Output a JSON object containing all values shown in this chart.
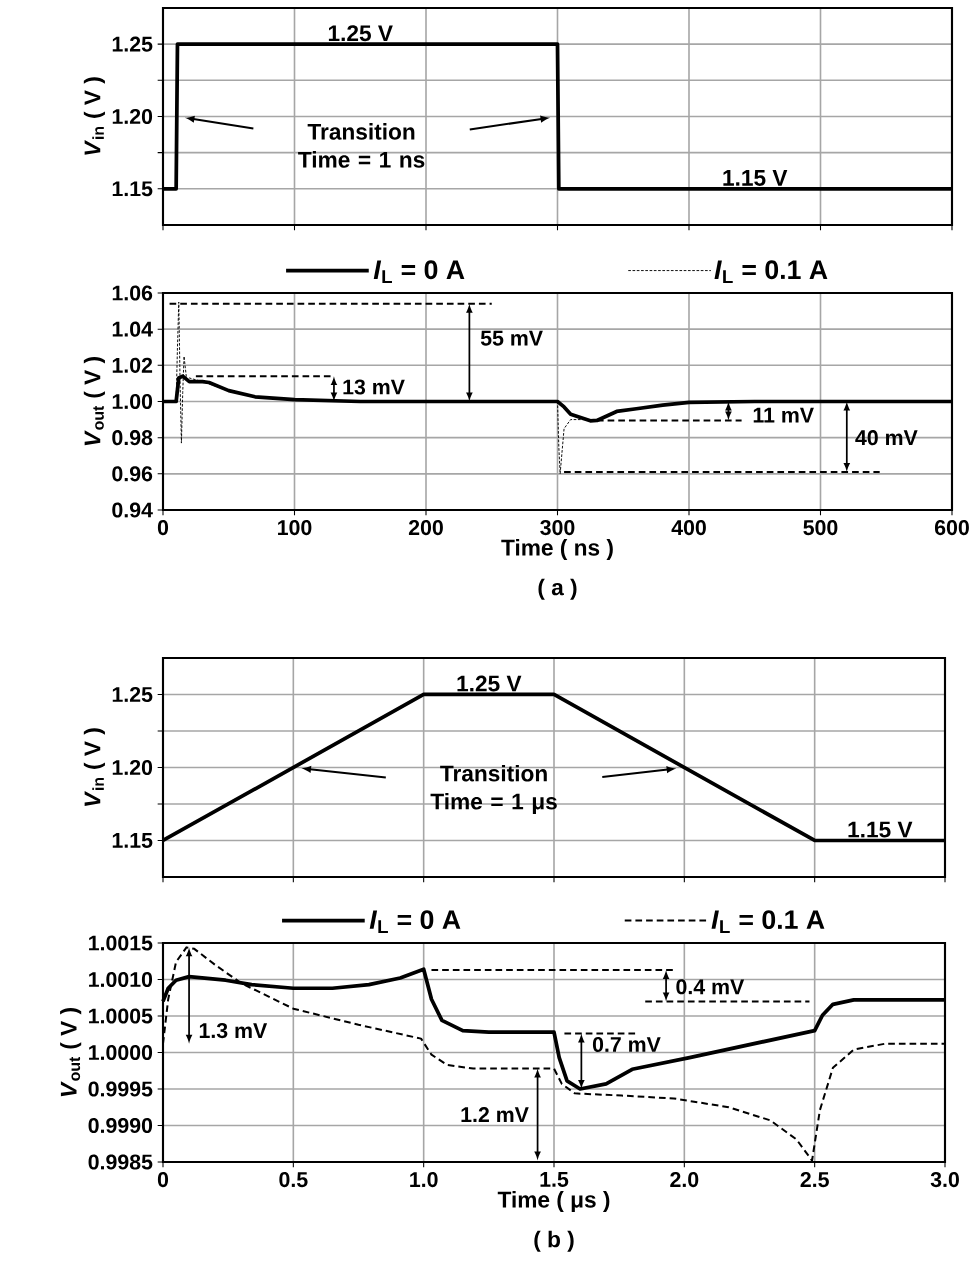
{
  "chart_data": [
    {
      "type": "line",
      "ylabel": "*V*$_{in}$ ( V )",
      "xlim": [
        0,
        600
      ],
      "ylim": [
        1.125,
        1.275
      ],
      "xticks": [
        0,
        100,
        200,
        300,
        400,
        500,
        600
      ],
      "yticks": [
        {
          "value": 1.15,
          "label": "1.15"
        },
        {
          "value": 1.175,
          "label": null
        },
        {
          "value": 1.2,
          "label": "1.20"
        },
        {
          "value": 1.225,
          "label": null
        },
        {
          "value": 1.25,
          "label": "1.25"
        }
      ],
      "tick_labels": "y",
      "grid": true,
      "series": [
        {
          "color": "#000000",
          "line_style": "solid",
          "x": [
            0,
            10,
            11,
            300,
            301,
            600
          ],
          "values": [
            1.15,
            1.15,
            1.25,
            1.25,
            1.15,
            1.15
          ]
        }
      ],
      "annotations": [
        "1.25 V",
        "1.15 V",
        "Transition Time = 1 ns"
      ]
    },
    {
      "type": "line",
      "xlabel": "Time ( ns )",
      "ylabel": "*V*$_{out}$ ( V )",
      "xlim": [
        0,
        600
      ],
      "ylim": [
        0.94,
        1.06
      ],
      "xticks": [
        0,
        100,
        200,
        300,
        400,
        500,
        600
      ],
      "yticks": [
        {
          "value": 0.94,
          "label": "0.94"
        },
        {
          "value": 0.96,
          "label": "0.96"
        },
        {
          "value": 0.98,
          "label": "0.98"
        },
        {
          "value": 1.0,
          "label": "1.00"
        },
        {
          "value": 1.02,
          "label": "1.02"
        },
        {
          "value": 1.04,
          "label": "1.04"
        },
        {
          "value": 1.06,
          "label": "1.06"
        }
      ],
      "grid": true,
      "legend": "top",
      "series": [
        {
          "name": "*I*$_{L}$ = 0 A",
          "color": "#000000",
          "line_style": "solid",
          "x": [
            0,
            10,
            12,
            15,
            20,
            30,
            35,
            50,
            70,
            100,
            150,
            300,
            305,
            310,
            325,
            330,
            345,
            360,
            380,
            400,
            450,
            600
          ],
          "values": [
            1.0,
            1.0,
            1.013,
            1.014,
            1.011,
            1.011,
            1.0105,
            1.006,
            1.0026,
            1.001,
            1.0,
            1.0,
            0.997,
            0.993,
            0.9893,
            0.9895,
            0.9945,
            0.996,
            0.998,
            0.9995,
            1.0,
            1.0
          ]
        },
        {
          "name": "*I*$_{L}$ = 0.1 A",
          "color": "#000000",
          "line_style": "dotted",
          "x": [
            0,
            10,
            11,
            12,
            13,
            14,
            15,
            16,
            18,
            20,
            30,
            50,
            70,
            100,
            150,
            300,
            301,
            302,
            305,
            310,
            320,
            330,
            345,
            360,
            380,
            400,
            450,
            600
          ],
          "values": [
            1.0,
            1.0,
            1.03,
            1.055,
            1.01,
            0.977,
            1.005,
            1.025,
            1.012,
            1.013,
            1.011,
            1.006,
            1.0026,
            1.001,
            1.0,
            1.0,
            0.975,
            0.96,
            0.985,
            0.99,
            0.99,
            0.9895,
            0.9945,
            0.996,
            0.998,
            0.9995,
            1.0,
            1.0
          ]
        },
        {
          "color": "#000000",
          "line_style": "dashed",
          "x": [
            5,
            250
          ],
          "values": [
            1.054,
            1.054
          ]
        },
        {
          "color": "#000000",
          "line_style": "dashed",
          "x": [
            25,
            130
          ],
          "values": [
            1.014,
            1.014
          ]
        },
        {
          "color": "#000000",
          "line_style": "dashed",
          "x": [
            330,
            440
          ],
          "values": [
            0.9895,
            0.9895
          ]
        },
        {
          "color": "#000000",
          "line_style": "dashed",
          "x": [
            305,
            545
          ],
          "values": [
            0.961,
            0.961
          ]
        }
      ],
      "annotations": [
        "55 mV",
        "13 mV",
        "11 mV",
        "40 mV",
        "( a )"
      ]
    },
    {
      "type": "line",
      "ylabel": "*V*$_{in}$ ( V )",
      "xlim": [
        0,
        3
      ],
      "ylim": [
        1.125,
        1.275
      ],
      "xticks": [
        0,
        0.5,
        1,
        1.5,
        2,
        2.5,
        3
      ],
      "yticks": [
        {
          "value": 1.15,
          "label": "1.15"
        },
        {
          "value": 1.175,
          "label": null
        },
        {
          "value": 1.2,
          "label": "1.20"
        },
        {
          "value": 1.225,
          "label": null
        },
        {
          "value": 1.25,
          "label": "1.25"
        }
      ],
      "tick_labels": "y",
      "grid": true,
      "series": [
        {
          "color": "#000000",
          "line_style": "solid",
          "x": [
            0,
            1,
            1.5,
            2.5,
            3
          ],
          "values": [
            1.15,
            1.25,
            1.25,
            1.15,
            1.15
          ]
        }
      ],
      "annotations": [
        "1.25 V",
        "1.15 V",
        "Transition Time = 1 μs"
      ]
    },
    {
      "type": "line",
      "xlabel": "Time ( μs )",
      "ylabel": "*V*$_{out}$ ( V )",
      "xlim": [
        0,
        3
      ],
      "ylim": [
        0.9985,
        1.0015
      ],
      "xticks": [
        0,
        {
          "value": 0.5,
          "label": "0.5"
        },
        {
          "value": 1,
          "label": "1.0"
        },
        {
          "value": 1.5,
          "label": "1.5"
        },
        {
          "value": 2,
          "label": "2.0"
        },
        {
          "value": 2.5,
          "label": "2.5"
        },
        {
          "value": 3,
          "label": "3.0"
        }
      ],
      "yticks": [
        {
          "value": 0.9985,
          "label": "0.9985"
        },
        {
          "value": 0.999,
          "label": "0.9990"
        },
        {
          "value": 0.9995,
          "label": "0.9995"
        },
        {
          "value": 1.0,
          "label": "1.0000"
        },
        {
          "value": 1.0005,
          "label": "1.0005"
        },
        {
          "value": 1.001,
          "label": "1.0010"
        },
        {
          "value": 1.0015,
          "label": "1.0015"
        }
      ],
      "grid": true,
      "legend": "top",
      "series": [
        {
          "name": "*I*$_{L}$ = 0 A",
          "color": "#000000",
          "line_style": "solid",
          "x": [
            0,
            0.02,
            0.05,
            0.1,
            0.24,
            0.34,
            0.5,
            0.65,
            0.79,
            0.91,
            1.0,
            1.03,
            1.07,
            1.15,
            1.25,
            1.5,
            1.52,
            1.55,
            1.6,
            1.7,
            1.8,
            2.02,
            2.5,
            2.53,
            2.57,
            2.65,
            3.0
          ],
          "values": [
            1.0007,
            1.00088,
            1.00099,
            1.00104,
            1.00099,
            1.00093,
            1.00088,
            1.00088,
            1.00093,
            1.00102,
            1.00114,
            1.00073,
            1.00044,
            1.0003,
            1.00028,
            1.00028,
            0.99993,
            0.99961,
            0.9995,
            0.99957,
            0.99977,
            0.99993,
            1.0003,
            1.00051,
            1.00066,
            1.00072,
            1.00072
          ]
        },
        {
          "name": "*I*$_{L}$ = 0.1 A",
          "color": "#000000",
          "line_style": "dashed",
          "x": [
            0,
            0.02,
            0.05,
            0.09,
            0.12,
            0.2,
            0.3,
            0.5,
            0.75,
            0.99,
            1.03,
            1.09,
            1.19,
            1.5,
            1.53,
            1.58,
            1.76,
            1.96,
            2.17,
            2.33,
            2.43,
            2.49,
            2.52,
            2.57,
            2.65,
            2.77,
            3.0
          ],
          "values": [
            1.00012,
            1.00073,
            1.00124,
            1.00144,
            1.00142,
            1.0012,
            1.00095,
            1.0006,
            1.00038,
            1.00019,
            0.99997,
            0.99983,
            0.99978,
            0.99978,
            0.99957,
            0.99944,
            0.99941,
            0.99937,
            0.99925,
            0.99907,
            0.99881,
            0.99852,
            0.99921,
            0.99979,
            1.00004,
            1.00012,
            1.00012
          ]
        },
        {
          "color": "#000000",
          "line_style": "dashed",
          "x": [
            1.03,
            1.96
          ],
          "values": [
            1.00113,
            1.00113
          ]
        },
        {
          "color": "#000000",
          "line_style": "dashed",
          "x": [
            1.85,
            2.48
          ],
          "values": [
            1.0007,
            1.0007
          ]
        },
        {
          "color": "#000000",
          "line_style": "dashed",
          "x": [
            1.54,
            1.82
          ],
          "values": [
            1.00026,
            1.00026
          ]
        }
      ],
      "annotations": [
        "1.3 mV",
        "0.4 mV",
        "0.7 mV",
        "1.2 mV",
        "( b )"
      ]
    }
  ]
}
